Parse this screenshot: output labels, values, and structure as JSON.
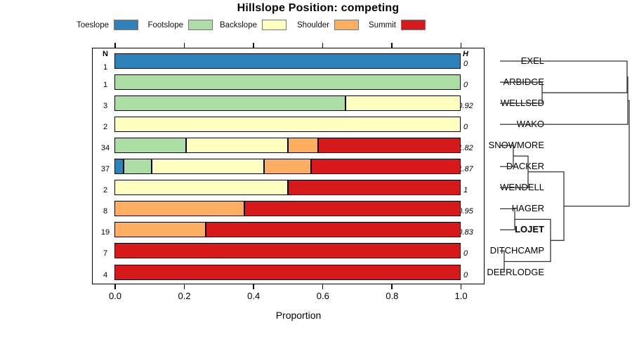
{
  "title": "Hillslope Position: competing",
  "x_axis": {
    "label": "Proportion",
    "tick_labels": [
      "0.0",
      "0.2",
      "0.4",
      "0.6",
      "0.8",
      "1.0"
    ]
  },
  "columns": {
    "n_header": "N",
    "h_header": "H"
  },
  "legend": [
    {
      "label": "Toeslope",
      "color": "#2b83ba"
    },
    {
      "label": "Footslope",
      "color": "#abdda4"
    },
    {
      "label": "Backslope",
      "color": "#ffffbf"
    },
    {
      "label": "Shoulder",
      "color": "#fdae61"
    },
    {
      "label": "Summit",
      "color": "#d7191c"
    }
  ],
  "chart_data": {
    "type": "bar",
    "orientation": "horizontal",
    "stacked": true,
    "title": "Hillslope Position: competing",
    "xlabel": "Proportion",
    "xlim": [
      0,
      1
    ],
    "x_ticks": [
      0.0,
      0.2,
      0.4,
      0.6,
      0.8,
      1.0
    ],
    "series_names": [
      "Toeslope",
      "Footslope",
      "Backslope",
      "Shoulder",
      "Summit"
    ],
    "series_colors": [
      "#2b83ba",
      "#abdda4",
      "#ffffbf",
      "#fdae61",
      "#d7191c"
    ],
    "rows": [
      {
        "label": "EXEL",
        "bold": false,
        "n": 1,
        "h": "0",
        "proportions": [
          1,
          0,
          0,
          0,
          0
        ]
      },
      {
        "label": "ARBIDGE",
        "bold": false,
        "n": 1,
        "h": "0",
        "proportions": [
          0,
          1,
          0,
          0,
          0
        ]
      },
      {
        "label": "WELLSED",
        "bold": false,
        "n": 3,
        "h": "0.92",
        "proportions": [
          0,
          0.667,
          0.333,
          0,
          0
        ]
      },
      {
        "label": "WAKO",
        "bold": false,
        "n": 2,
        "h": "0",
        "proportions": [
          0,
          0,
          1,
          0,
          0
        ]
      },
      {
        "label": "SNOWMORE",
        "bold": false,
        "n": 34,
        "h": "1.82",
        "proportions": [
          0,
          0.206,
          0.294,
          0.088,
          0.412
        ]
      },
      {
        "label": "DACKER",
        "bold": false,
        "n": 37,
        "h": "1.87",
        "proportions": [
          0.027,
          0.081,
          0.324,
          0.135,
          0.433
        ]
      },
      {
        "label": "WENDELL",
        "bold": false,
        "n": 2,
        "h": "1",
        "proportions": [
          0,
          0,
          0.5,
          0,
          0.5
        ]
      },
      {
        "label": "HAGER",
        "bold": false,
        "n": 8,
        "h": "0.95",
        "proportions": [
          0,
          0,
          0,
          0.375,
          0.625
        ]
      },
      {
        "label": "LOJET",
        "bold": true,
        "n": 19,
        "h": "0.83",
        "proportions": [
          0,
          0,
          0,
          0.263,
          0.737
        ]
      },
      {
        "label": "DITCHCAMP",
        "bold": false,
        "n": 7,
        "h": "0",
        "proportions": [
          0,
          0,
          0,
          0,
          1
        ]
      },
      {
        "label": "DEERLODGE",
        "bold": false,
        "n": 4,
        "h": "0",
        "proportions": [
          0,
          0,
          0,
          0,
          1
        ]
      }
    ]
  },
  "dendrogram": {
    "leaf_order": [
      "EXEL",
      "ARBIDGE",
      "WELLSED",
      "WAKO",
      "SNOWMORE",
      "DACKER",
      "WENDELL",
      "HAGER",
      "LOJET",
      "DITCHCAMP",
      "DEERLODGE"
    ],
    "merges": [
      {
        "id": "m1",
        "a": "ARBIDGE",
        "b": "WELLSED",
        "x": 772
      },
      {
        "id": "m2",
        "a": "EXEL",
        "b": "m1",
        "x": 893
      },
      {
        "id": "m3",
        "a": "SNOWMORE",
        "b": "DACKER",
        "x": 731
      },
      {
        "id": "m4",
        "a": "m3",
        "b": "WENDELL",
        "x": 752
      },
      {
        "id": "m5",
        "a": "HAGER",
        "b": "LOJET",
        "x": 733
      },
      {
        "id": "m6",
        "a": "DITCHCAMP",
        "b": "DEERLODGE",
        "x": 718
      },
      {
        "id": "m7",
        "a": "m5",
        "b": "m6",
        "x": 784
      },
      {
        "id": "m8",
        "a": "m4",
        "b": "m7",
        "x": 803
      },
      {
        "id": "m9",
        "a": "m2",
        "b": "WAKO",
        "x": 894
      },
      {
        "id": "m10",
        "a": "m9",
        "b": "m8",
        "x": 896
      }
    ]
  }
}
